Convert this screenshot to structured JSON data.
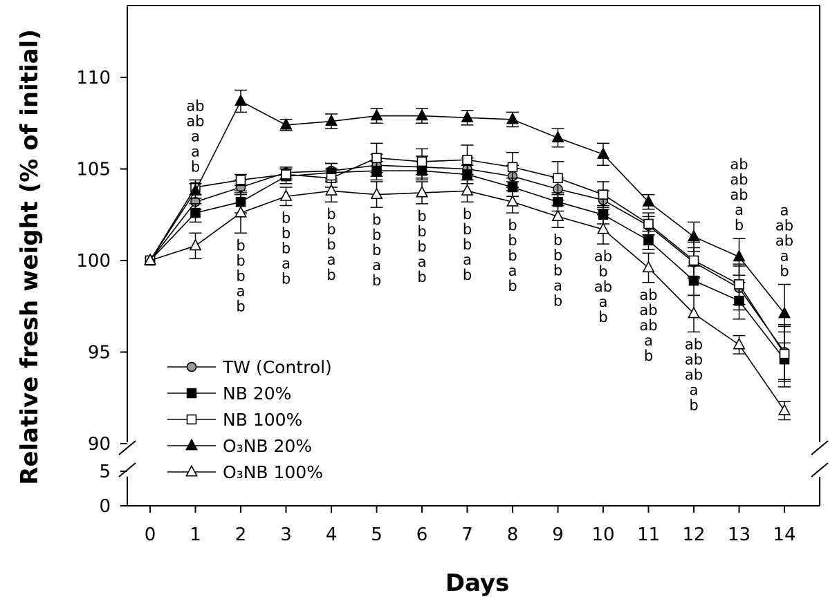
{
  "chart_data": {
    "type": "line",
    "xlabel": "Days",
    "ylabel": "Relative fresh weight (% of initial)",
    "x": [
      0,
      1,
      2,
      3,
      4,
      5,
      6,
      7,
      8,
      9,
      10,
      11,
      12,
      13,
      14
    ],
    "x_ticks": [
      "0",
      "1",
      "2",
      "3",
      "4",
      "5",
      "6",
      "7",
      "8",
      "9",
      "10",
      "11",
      "12",
      "13",
      "14"
    ],
    "y_ticks_upper": [
      "90",
      "95",
      "100",
      "105",
      "110"
    ],
    "y_ticks_lower": [
      "0",
      "5"
    ],
    "ylim_upper": [
      90,
      114
    ],
    "ylim_lower": [
      0,
      5
    ],
    "axis_break": true,
    "series": [
      {
        "name": "TW (Control)",
        "marker": "circle",
        "fill": "#9a9a9a",
        "values": [
          100,
          103.2,
          104.0,
          104.8,
          104.9,
          105.2,
          105.1,
          105.0,
          104.6,
          103.9,
          103.3,
          101.9,
          99.9,
          98.5,
          95.0
        ],
        "errors": [
          0,
          0.4,
          0.4,
          0.3,
          0.4,
          0.6,
          0.6,
          0.6,
          0.6,
          0.6,
          0.5,
          0.5,
          0.8,
          1.2,
          1.5
        ]
      },
      {
        "name": "NB 20%",
        "marker": "square",
        "fill": "#000000",
        "values": [
          100,
          102.6,
          103.2,
          104.6,
          104.8,
          104.9,
          104.9,
          104.7,
          104.0,
          103.2,
          102.5,
          101.1,
          98.9,
          97.8,
          94.6
        ],
        "errors": [
          0,
          0.5,
          0.6,
          0.4,
          0.5,
          0.5,
          0.5,
          0.5,
          0.5,
          0.5,
          0.5,
          0.5,
          0.8,
          1.0,
          1.5
        ]
      },
      {
        "name": "NB 100%",
        "marker": "square",
        "fill": "#ffffff",
        "values": [
          100,
          104.0,
          104.4,
          104.7,
          104.5,
          105.6,
          105.4,
          105.5,
          105.1,
          104.5,
          103.6,
          102.0,
          100.0,
          98.7,
          94.9
        ],
        "errors": [
          0,
          0.4,
          0.3,
          0.3,
          0.5,
          0.8,
          0.7,
          0.8,
          0.8,
          0.9,
          0.7,
          0.6,
          1.0,
          1.1,
          1.5
        ]
      },
      {
        "name": "O₃NB 20%",
        "marker": "triangle",
        "fill": "#000000",
        "values": [
          100,
          103.8,
          108.7,
          107.4,
          107.6,
          107.9,
          107.9,
          107.8,
          107.7,
          106.7,
          105.8,
          103.2,
          101.3,
          100.2,
          97.1
        ],
        "errors": [
          0,
          0.4,
          0.6,
          0.3,
          0.4,
          0.4,
          0.4,
          0.4,
          0.4,
          0.5,
          0.6,
          0.4,
          0.8,
          1.0,
          1.6
        ]
      },
      {
        "name": "O₃NB 100%",
        "marker": "triangle",
        "fill": "#ffffff",
        "values": [
          100,
          100.8,
          102.6,
          103.5,
          103.8,
          103.6,
          103.7,
          103.8,
          103.2,
          102.4,
          101.7,
          99.6,
          97.1,
          95.4,
          91.8
        ],
        "errors": [
          0,
          0.7,
          1.1,
          0.5,
          0.6,
          0.7,
          0.6,
          0.6,
          0.6,
          0.6,
          0.8,
          0.8,
          1.0,
          0.5,
          0.5
        ]
      }
    ],
    "letters": [
      {
        "day": 1,
        "position": "above",
        "labels": [
          "ab",
          "ab",
          "a",
          "a",
          "b"
        ]
      },
      {
        "day": 2,
        "position": "below",
        "labels": [
          "b",
          "b",
          "b",
          "a",
          "b"
        ]
      },
      {
        "day": 3,
        "position": "below",
        "labels": [
          "b",
          "b",
          "b",
          "a",
          "b"
        ]
      },
      {
        "day": 4,
        "position": "below",
        "labels": [
          "b",
          "b",
          "b",
          "a",
          "b"
        ]
      },
      {
        "day": 5,
        "position": "below",
        "labels": [
          "b",
          "b",
          "b",
          "a",
          "b"
        ]
      },
      {
        "day": 6,
        "position": "below",
        "labels": [
          "b",
          "b",
          "b",
          "a",
          "b"
        ]
      },
      {
        "day": 7,
        "position": "below",
        "labels": [
          "b",
          "b",
          "b",
          "a",
          "b"
        ]
      },
      {
        "day": 8,
        "position": "below",
        "labels": [
          "b",
          "b",
          "b",
          "a",
          "b"
        ]
      },
      {
        "day": 9,
        "position": "below",
        "labels": [
          "b",
          "b",
          "b",
          "a",
          "b"
        ]
      },
      {
        "day": 10,
        "position": "below",
        "labels": [
          "ab",
          "b",
          "ab",
          "a",
          "b"
        ]
      },
      {
        "day": 11,
        "position": "below",
        "labels": [
          "ab",
          "ab",
          "ab",
          "a",
          "b"
        ]
      },
      {
        "day": 12,
        "position": "below",
        "labels": [
          "ab",
          "ab",
          "ab",
          "a",
          "b"
        ]
      },
      {
        "day": 13,
        "position": "above",
        "labels": [
          "ab",
          "ab",
          "ab",
          "a",
          "b"
        ]
      },
      {
        "day": 14,
        "position": "above",
        "labels": [
          "a",
          "ab",
          "ab",
          "a",
          "b"
        ]
      }
    ],
    "legend_position": "bottom-left",
    "grid": false
  }
}
